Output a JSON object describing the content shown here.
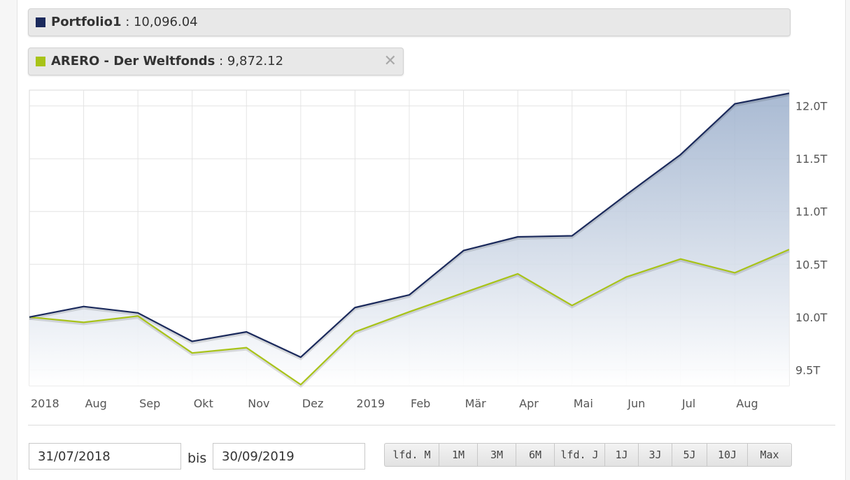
{
  "legend": [
    {
      "name": "Portfolio1",
      "separator": " : ",
      "value": "10,096.04",
      "color": "#1b2a5c"
    },
    {
      "name": "ARERO - Der Weltfonds",
      "separator": " : ",
      "value": "9,872.12",
      "color": "#a8c318",
      "close_icon": "✕"
    }
  ],
  "chart_data": {
    "type": "area",
    "x": [
      "31/07/2018",
      "31/08/2018",
      "28/09/2018",
      "31/10/2018",
      "30/11/2018",
      "31/12/2018",
      "31/01/2019",
      "28/02/2019",
      "29/03/2019",
      "30/04/2019",
      "31/05/2019",
      "28/06/2019",
      "31/07/2019",
      "30/08/2019",
      "30/09/2019"
    ],
    "x_tick_labels": [
      "2018",
      "Aug",
      "Sep",
      "Okt",
      "Nov",
      "Dez",
      "2019",
      "Feb",
      "Mär",
      "Apr",
      "Mai",
      "Jun",
      "Jul",
      "Aug"
    ],
    "y_tick_labels": [
      "9.5T",
      "10.0T",
      "10.5T",
      "11.0T",
      "11.5T",
      "12.0T"
    ],
    "y_ticks": [
      9500,
      10000,
      10500,
      11000,
      11500,
      12000
    ],
    "ylim": [
      9350,
      12150
    ],
    "y_axis_position": "right",
    "grid": true,
    "series": [
      {
        "name": "Portfolio1",
        "color": "#1b2a5c",
        "fill": true,
        "values": [
          10000,
          10100,
          10040,
          9770,
          9860,
          9620,
          10090,
          10210,
          10630,
          10760,
          10770,
          11160,
          11540,
          12020,
          12120
        ]
      },
      {
        "name": "ARERO - Der Weltfonds",
        "color": "#a8c318",
        "fill": false,
        "values": [
          10000,
          9950,
          10010,
          9660,
          9710,
          9360,
          9860,
          10050,
          10230,
          10410,
          10110,
          10380,
          10550,
          10420,
          10640
        ]
      }
    ]
  },
  "date_range": {
    "from": "31/07/2018",
    "separator": "bis",
    "to": "30/09/2019"
  },
  "range_buttons": [
    "lfd. M",
    "1M",
    "3M",
    "6M",
    "lfd. J",
    "1J",
    "3J",
    "5J",
    "10J",
    "Max"
  ]
}
